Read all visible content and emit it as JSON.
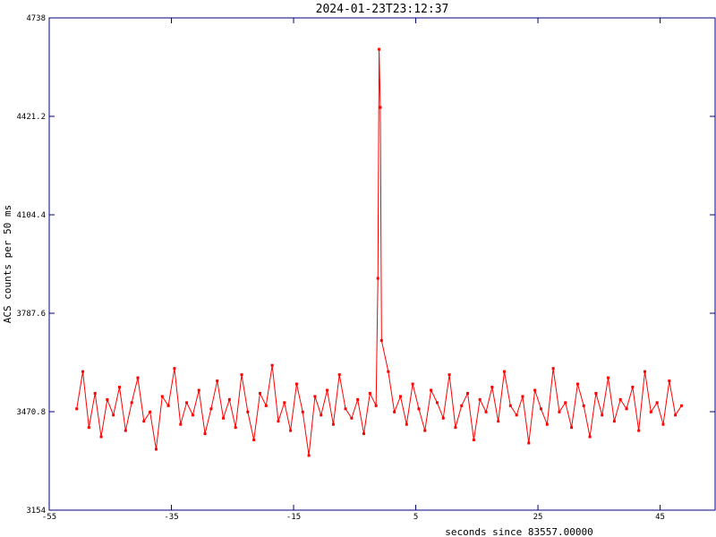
{
  "chart_data": {
    "type": "line",
    "title": "2024-01-23T23:12:37",
    "x_label": "seconds since 83557.00000",
    "y_label": "ACS counts per 50 ms",
    "xlim": [
      -55,
      54
    ],
    "ylim": [
      3154,
      4738
    ],
    "xticks": [
      -55,
      -35,
      -15,
      5,
      25,
      45
    ],
    "yticks": [
      3154,
      3470.8,
      3787.6,
      4104.4,
      4421.2,
      4738
    ],
    "frame_color": "#000080",
    "x": [
      -50.5,
      -49.5,
      -48.5,
      -47.5,
      -46.5,
      -45.5,
      -44.5,
      -43.5,
      -42.5,
      -41.5,
      -40.5,
      -39.5,
      -38.5,
      -37.5,
      -36.5,
      -35.5,
      -34.5,
      -33.5,
      -32.5,
      -31.5,
      -30.5,
      -29.5,
      -28.5,
      -27.5,
      -26.5,
      -25.5,
      -24.5,
      -23.5,
      -22.5,
      -21.5,
      -20.5,
      -19.5,
      -18.5,
      -17.5,
      -16.5,
      -15.5,
      -14.5,
      -13.5,
      -12.5,
      -11.5,
      -10.5,
      -9.5,
      -8.5,
      -7.5,
      -6.5,
      -5.5,
      -4.5,
      -3.5,
      -2.5,
      -1.5,
      -1.2,
      -1.0,
      -0.8,
      -0.6,
      0.5,
      1.5,
      2.5,
      3.5,
      4.5,
      5.5,
      6.5,
      7.5,
      8.5,
      9.5,
      10.5,
      11.5,
      12.5,
      13.5,
      14.5,
      15.5,
      16.5,
      17.5,
      18.5,
      19.5,
      20.5,
      21.5,
      22.5,
      23.5,
      24.5,
      25.5,
      26.5,
      27.5,
      28.5,
      29.5,
      30.5,
      31.5,
      32.5,
      33.5,
      34.5,
      35.5,
      36.5,
      37.5,
      38.5,
      39.5,
      40.5,
      41.5,
      42.5,
      43.5,
      44.5,
      45.5,
      46.5,
      47.5,
      48.5
    ],
    "series": [
      {
        "color": "#ff0000",
        "values": [
          3480,
          3600,
          3420,
          3530,
          3390,
          3510,
          3460,
          3550,
          3410,
          3500,
          3580,
          3440,
          3470,
          3350,
          3520,
          3490,
          3610,
          3430,
          3500,
          3460,
          3540,
          3400,
          3480,
          3570,
          3450,
          3510,
          3420,
          3590,
          3470,
          3380,
          3530,
          3490,
          3620,
          3440,
          3500,
          3410,
          3560,
          3470,
          3330,
          3520,
          3460,
          3540,
          3430,
          3590,
          3480,
          3450,
          3510,
          3400,
          3530,
          3490,
          3900,
          4637,
          4450,
          3700,
          3600,
          3470,
          3520,
          3430,
          3560,
          3480,
          3410,
          3540,
          3500,
          3450,
          3590,
          3420,
          3490,
          3530,
          3380,
          3510,
          3470,
          3550,
          3440,
          3600,
          3490,
          3460,
          3520,
          3370,
          3540,
          3480,
          3430,
          3610,
          3470,
          3500,
          3420,
          3560,
          3490,
          3390,
          3530,
          3460,
          3580,
          3440,
          3510,
          3480,
          3550,
          3410,
          3600,
          3470,
          3500,
          3430,
          3570,
          3460,
          3490
        ]
      }
    ]
  }
}
